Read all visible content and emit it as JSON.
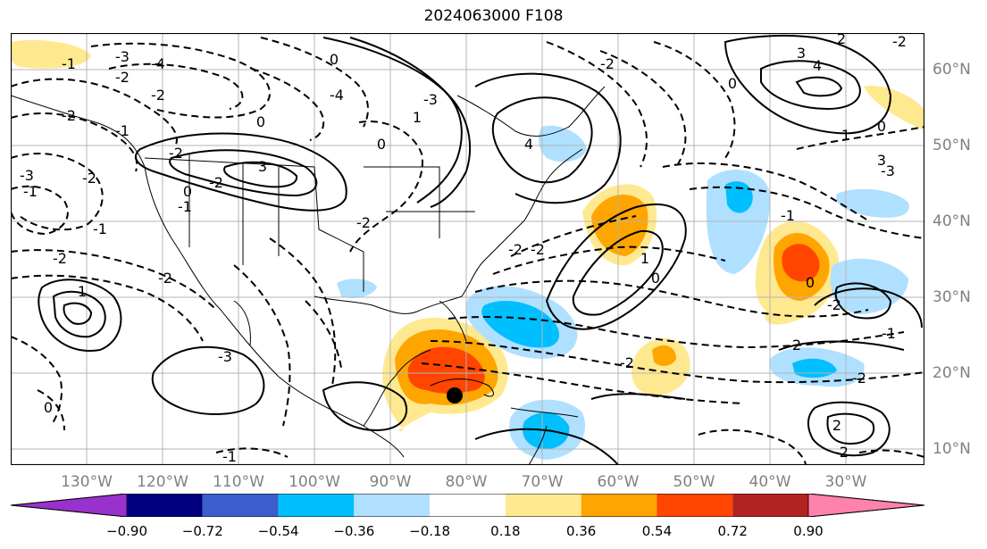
{
  "title": "2024063000 F108",
  "longitude_labels": [
    "130°W",
    "120°W",
    "110°W",
    "100°W",
    "90°W",
    "80°W",
    "70°W",
    "60°W",
    "50°W",
    "40°W",
    "30°W"
  ],
  "latitude_labels": [
    "60°N",
    "50°N",
    "40°N",
    "30°N",
    "20°N",
    "10°N"
  ],
  "colorbar": {
    "tick_labels": [
      "−0.90",
      "−0.72",
      "−0.54",
      "−0.36",
      "−0.18",
      "0.18",
      "0.36",
      "0.54",
      "0.72",
      "0.90"
    ],
    "colors": [
      "#9932cc",
      "#000080",
      "#3a5fcd",
      "#00bfff",
      "#b0e0ff",
      "#ffffff",
      "#ffe990",
      "#ffa500",
      "#ff4500",
      "#b22222",
      "#ff82ab"
    ]
  },
  "contour_labels": [
    "-3",
    "-4",
    "-1",
    "-2",
    "0",
    "-2",
    "3",
    "-1",
    "0",
    "-2",
    "-3",
    "-2",
    "-1",
    "-2",
    "-2",
    "-1",
    "0",
    "-2",
    "-1",
    "-2",
    "-4",
    "-3",
    "1",
    "-2",
    "0",
    "4",
    "0",
    "1",
    "3",
    "4",
    "-2",
    "-3",
    "3",
    "0",
    "2",
    "-2",
    "-2",
    "0",
    "-2",
    "-1",
    "0",
    "-2",
    "2",
    "-2",
    "-1",
    "1",
    "1",
    "-3",
    "0",
    "-2",
    "-1",
    "-2",
    "2"
  ],
  "icons": {
    "storm_center": "black-dot-marker"
  }
}
